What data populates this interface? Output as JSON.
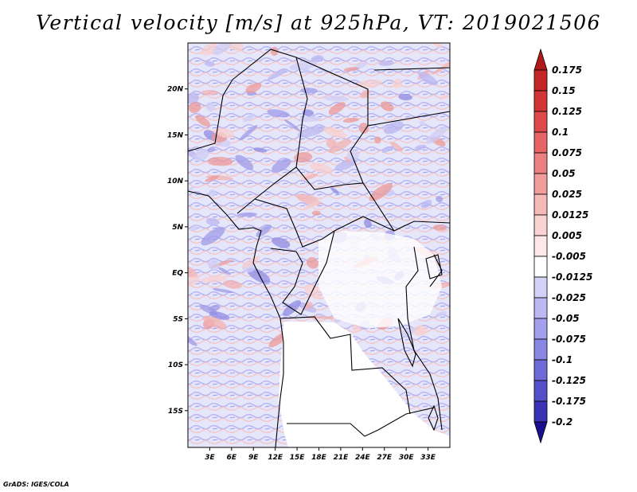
{
  "title": "Vertical velocity [m/s] at 925hPa, VT: 2019021506",
  "credit": "GrADS: IGES/COLA",
  "map": {
    "lon_range": [
      0,
      36
    ],
    "lat_range": [
      -19,
      25
    ],
    "lat_labels": [
      {
        "lat": 20,
        "text": "20N"
      },
      {
        "lat": 15,
        "text": "15N"
      },
      {
        "lat": 10,
        "text": "10N"
      },
      {
        "lat": 5,
        "text": "5N"
      },
      {
        "lat": 0,
        "text": "EQ"
      },
      {
        "lat": -5,
        "text": "5S"
      },
      {
        "lat": -10,
        "text": "10S"
      },
      {
        "lat": -15,
        "text": "15S"
      }
    ],
    "lon_labels": [
      {
        "lon": 3,
        "text": "3E"
      },
      {
        "lon": 6,
        "text": "6E"
      },
      {
        "lon": 9,
        "text": "9E"
      },
      {
        "lon": 12,
        "text": "12E"
      },
      {
        "lon": 15,
        "text": "15E"
      },
      {
        "lon": 18,
        "text": "18E"
      },
      {
        "lon": 21,
        "text": "21E"
      },
      {
        "lon": 24,
        "text": "24E"
      },
      {
        "lon": 27,
        "text": "27E"
      },
      {
        "lon": 30,
        "text": "30E"
      },
      {
        "lon": 33,
        "text": "33E"
      }
    ]
  },
  "colorbar": {
    "colors": [
      "#1a0f8c",
      "#3a33b5",
      "#5450c8",
      "#6e6ad8",
      "#8a86e4",
      "#a29fec",
      "#bcb9f2",
      "#d3d1f7",
      "#ffffff",
      "#fde7e7",
      "#fbd2d2",
      "#f7b8b8",
      "#f29c9c",
      "#ec8080",
      "#e66464",
      "#de4a4a",
      "#d23535",
      "#c42626",
      "#b01a1a"
    ],
    "labels": [
      "-0.2",
      "-0.175",
      "-0.125",
      "-0.1",
      "-0.075",
      "-0.05",
      "-0.025",
      "-0.0125",
      "-0.005",
      "0.005",
      "0.0125",
      "0.025",
      "0.05",
      "0.075",
      "0.1",
      "0.125",
      "0.15",
      "0.175"
    ]
  }
}
